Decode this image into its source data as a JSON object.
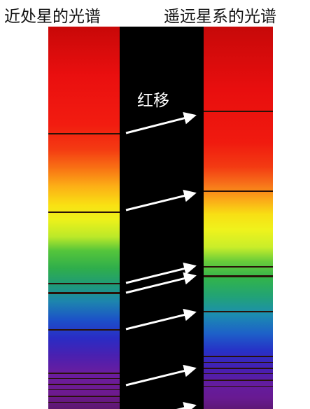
{
  "labels": {
    "near_star": "近处星的光谱",
    "far_galaxy": "遥远星系的光谱",
    "redshift": "红移"
  },
  "colors": {
    "background": "#ffffff",
    "band": "#000000",
    "arrow": "#ffffff",
    "absorption_line": "#2a1208"
  },
  "diagram": {
    "spectra": [
      "near-star-spectrum",
      "far-galaxy-spectrum"
    ],
    "arrow_count": 7,
    "shift_direction": "toward red end"
  }
}
